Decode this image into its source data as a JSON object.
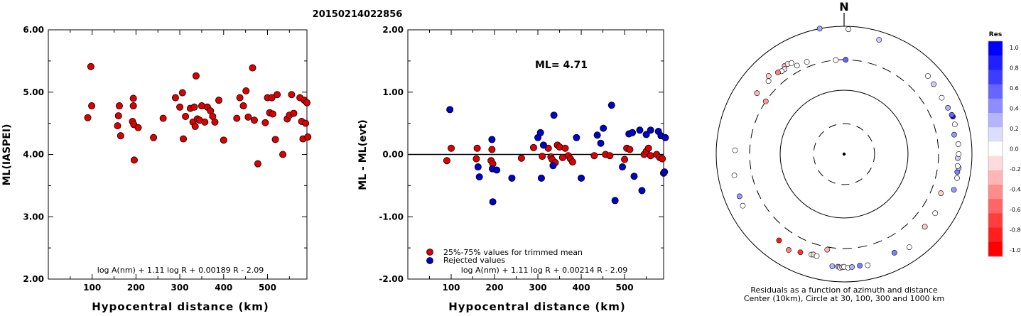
{
  "event_id": "20150214022856",
  "chart_data": [
    {
      "type": "scatter",
      "xlabel": "Hypocentral distance (km)",
      "ylabel": "ML(IASPEI)",
      "xlim": [
        0,
        590
      ],
      "ylim": [
        2.0,
        6.0
      ],
      "x_ticks": [
        "100",
        "200",
        "300",
        "400",
        "500"
      ],
      "y_ticks": [
        "2.00",
        "3.00",
        "4.00",
        "5.00",
        "6.00"
      ],
      "formula": "log A(nm) + 1.11 log R + 0.00189 R - 2.09",
      "point_color": "#dd0000",
      "points": [
        [
          90,
          4.59
        ],
        [
          97,
          5.41
        ],
        [
          99,
          4.78
        ],
        [
          158,
          4.46
        ],
        [
          160,
          4.62
        ],
        [
          162,
          4.78
        ],
        [
          165,
          4.3
        ],
        [
          192,
          4.53
        ],
        [
          194,
          4.78
        ],
        [
          194,
          4.9
        ],
        [
          195,
          4.48
        ],
        [
          196,
          3.91
        ],
        [
          205,
          4.43
        ],
        [
          240,
          4.27
        ],
        [
          262,
          4.58
        ],
        [
          290,
          4.91
        ],
        [
          300,
          4.76
        ],
        [
          306,
          4.99
        ],
        [
          308,
          4.25
        ],
        [
          313,
          4.61
        ],
        [
          324,
          4.74
        ],
        [
          330,
          4.52
        ],
        [
          333,
          4.76
        ],
        [
          335,
          4.45
        ],
        [
          337,
          5.26
        ],
        [
          340,
          4.57
        ],
        [
          345,
          4.55
        ],
        [
          350,
          4.78
        ],
        [
          357,
          4.52
        ],
        [
          363,
          4.76
        ],
        [
          370,
          4.7
        ],
        [
          375,
          4.61
        ],
        [
          380,
          4.52
        ],
        [
          389,
          4.87
        ],
        [
          400,
          4.23
        ],
        [
          430,
          4.58
        ],
        [
          437,
          4.91
        ],
        [
          445,
          4.78
        ],
        [
          451,
          5.02
        ],
        [
          456,
          4.6
        ],
        [
          466,
          5.39
        ],
        [
          470,
          4.55
        ],
        [
          478,
          3.85
        ],
        [
          495,
          4.51
        ],
        [
          500,
          4.91
        ],
        [
          505,
          4.67
        ],
        [
          510,
          4.91
        ],
        [
          512,
          4.65
        ],
        [
          518,
          4.24
        ],
        [
          522,
          4.96
        ],
        [
          535,
          4.0
        ],
        [
          545,
          4.57
        ],
        [
          550,
          4.63
        ],
        [
          555,
          4.96
        ],
        [
          560,
          4.66
        ],
        [
          574,
          4.91
        ],
        [
          578,
          4.53
        ],
        [
          581,
          4.25
        ],
        [
          584,
          4.87
        ],
        [
          587,
          4.5
        ],
        [
          590,
          4.83
        ],
        [
          592,
          4.28
        ]
      ]
    },
    {
      "type": "scatter",
      "xlabel": "Hypocentral distance (km)",
      "ylabel": "ML - ML(evt)",
      "xlim": [
        0,
        590
      ],
      "ylim": [
        -2.0,
        2.0
      ],
      "x_ticks": [
        "100",
        "200",
        "300",
        "400",
        "500"
      ],
      "y_ticks": [
        "-2.00",
        "-1.00",
        "0.00",
        "1.00",
        "2.00"
      ],
      "annotation": "ML= 4.71",
      "formula": "log A(nm) + 1.11 log R + 0.00214 R - 2.09",
      "legend": [
        "25%-75% values for trimmed mean",
        "Rejected values"
      ],
      "series": [
        {
          "name": "25%-75% values for trimmed mean",
          "color": "#dd0000",
          "points": [
            [
              90,
              -0.1
            ],
            [
              100,
              0.1
            ],
            [
              158,
              -0.07
            ],
            [
              160,
              0.1
            ],
            [
              192,
              -0.1
            ],
            [
              194,
              0.08
            ],
            [
              196,
              -0.15
            ],
            [
              262,
              -0.06
            ],
            [
              290,
              0.11
            ],
            [
              310,
              -0.03
            ],
            [
              324,
              0.1
            ],
            [
              330,
              -0.04
            ],
            [
              333,
              -0.08
            ],
            [
              340,
              -0.13
            ],
            [
              345,
              0.15
            ],
            [
              350,
              0.12
            ],
            [
              357,
              -0.05
            ],
            [
              363,
              0.1
            ],
            [
              370,
              -0.02
            ],
            [
              375,
              -0.07
            ],
            [
              380,
              -0.12
            ],
            [
              430,
              -0.02
            ],
            [
              456,
              0.0
            ],
            [
              466,
              -0.02
            ],
            [
              500,
              -0.08
            ],
            [
              505,
              0.1
            ],
            [
              512,
              0.08
            ],
            [
              545,
              0.0
            ],
            [
              550,
              0.05
            ],
            [
              555,
              0.1
            ],
            [
              560,
              -0.02
            ],
            [
              574,
              0.0
            ],
            [
              581,
              -0.05
            ],
            [
              587,
              -0.07
            ]
          ]
        },
        {
          "name": "Rejected values",
          "color": "#0000cc",
          "points": [
            [
              97,
              0.72
            ],
            [
              162,
              -0.2
            ],
            [
              165,
              -0.36
            ],
            [
              194,
              0.24
            ],
            [
              195,
              -0.23
            ],
            [
              196,
              -0.76
            ],
            [
              205,
              -0.25
            ],
            [
              240,
              -0.38
            ],
            [
              300,
              0.27
            ],
            [
              306,
              0.35
            ],
            [
              308,
              -0.38
            ],
            [
              313,
              0.15
            ],
            [
              335,
              -0.18
            ],
            [
              337,
              0.63
            ],
            [
              389,
              0.27
            ],
            [
              400,
              -0.38
            ],
            [
              437,
              0.31
            ],
            [
              445,
              0.18
            ],
            [
              451,
              0.42
            ],
            [
              470,
              0.79
            ],
            [
              478,
              -0.74
            ],
            [
              495,
              -0.2
            ],
            [
              510,
              0.33
            ],
            [
              518,
              0.35
            ],
            [
              522,
              -0.35
            ],
            [
              535,
              0.39
            ],
            [
              540,
              -0.58
            ],
            [
              550,
              0.32
            ],
            [
              560,
              0.39
            ],
            [
              578,
              0.37
            ],
            [
              584,
              0.3
            ],
            [
              590,
              -0.3
            ],
            [
              592,
              -0.28
            ],
            [
              594,
              0.27
            ]
          ]
        }
      ]
    },
    {
      "type": "scatter",
      "subtype": "polar",
      "north_label": "N",
      "caption": [
        "Residuals as a function of azimuth and distance",
        "Center (10km), Circle at 30, 100, 300 and 1000 km"
      ],
      "colorbar": {
        "title": "Res",
        "ticks": [
          "1.0",
          "0.8",
          "0.6",
          "0.4",
          "0.2",
          "0.0",
          "-0.2",
          "-0.4",
          "-0.6",
          "-0.8",
          "-1.0"
        ],
        "colors": [
          "#0000ff",
          "#1f1fff",
          "#3d3dff",
          "#6565ff",
          "#8d8dff",
          "#b5b5ff",
          "#dcdcff",
          "#ffffff",
          "#ffdcdc",
          "#ffb5b5",
          "#ff8d8d",
          "#ff6565",
          "#ff3d3d",
          "#ff1f1f",
          "#ff0000"
        ]
      },
      "stations": [
        {
          "az": -11,
          "dist": 1000,
          "res": 0.35
        },
        {
          "az": 2,
          "dist": 900,
          "res": 0.0
        },
        {
          "az": 17,
          "dist": 740,
          "res": 0.2
        },
        {
          "az": -5,
          "dist": 300,
          "res": 0.0
        },
        {
          "az": 1,
          "dist": 300,
          "res": 0.6
        },
        {
          "az": -34,
          "dist": 460,
          "res": -0.3
        },
        {
          "az": -32,
          "dist": 460,
          "res": -0.1
        },
        {
          "az": -30,
          "dist": 440,
          "res": 0.0
        },
        {
          "az": -35,
          "dist": 420,
          "res": 0.1
        },
        {
          "az": -37,
          "dist": 420,
          "res": 0.0
        },
        {
          "az": -39,
          "dist": 440,
          "res": -0.5
        },
        {
          "az": -28,
          "dist": 370,
          "res": 0.0
        },
        {
          "az": -22,
          "dist": 360,
          "res": 0.0
        },
        {
          "az": -44,
          "dist": 500,
          "res": -0.2
        },
        {
          "az": -46,
          "dist": 440,
          "res": 0.0
        },
        {
          "az": -55,
          "dist": 460,
          "res": -0.3
        },
        {
          "az": -56,
          "dist": 300,
          "res": -0.4
        },
        {
          "az": -88,
          "dist": 510,
          "res": 0.0
        },
        {
          "az": -101,
          "dist": 560,
          "res": 0.0
        },
        {
          "az": -112,
          "dist": 580,
          "res": 0.4
        },
        {
          "az": -117,
          "dist": 600,
          "res": 0.0
        },
        {
          "az": -143,
          "dist": 490,
          "res": -0.9
        },
        {
          "az": -150,
          "dist": 540,
          "res": -0.5
        },
        {
          "az": -156,
          "dist": 480,
          "res": -0.8
        },
        {
          "az": -162,
          "dist": 450,
          "res": 0.0
        },
        {
          "az": -163,
          "dist": 440,
          "res": -0.2
        },
        {
          "az": -165,
          "dist": 450,
          "res": 0.0
        },
        {
          "az": -174,
          "dist": 580,
          "res": 0.3
        },
        {
          "az": -177,
          "dist": 580,
          "res": 0.4
        },
        {
          "az": -178,
          "dist": 600,
          "res": 0.0
        },
        {
          "az": -179,
          "dist": 590,
          "res": -0.2
        },
        {
          "az": 180,
          "dist": 580,
          "res": 0.0
        },
        {
          "az": 178,
          "dist": 600,
          "res": 0.0
        },
        {
          "az": 176,
          "dist": 590,
          "res": 0.3
        },
        {
          "az": 172,
          "dist": 580,
          "res": 0.5
        },
        {
          "az": 168,
          "dist": 600,
          "res": 0.0
        },
        {
          "az": -170,
          "dist": 330,
          "res": -0.3
        },
        {
          "az": 153,
          "dist": 540,
          "res": 0.5
        },
        {
          "az": 145,
          "dist": 600,
          "res": 0.0
        },
        {
          "az": 132,
          "dist": 500,
          "res": -0.2
        },
        {
          "az": 123,
          "dist": 500,
          "res": 0.0
        },
        {
          "az": 112,
          "dist": 430,
          "res": -0.2
        },
        {
          "az": 108,
          "dist": 640,
          "res": 0.4
        },
        {
          "az": 102,
          "dist": 640,
          "res": 0.0
        },
        {
          "az": 99,
          "dist": 620,
          "res": 0.5
        },
        {
          "az": 97,
          "dist": 640,
          "res": 0.3
        },
        {
          "az": 96,
          "dist": 610,
          "res": 0.0
        },
        {
          "az": 92,
          "dist": 600,
          "res": 0.2
        },
        {
          "az": 90,
          "dist": 620,
          "res": 0.0
        },
        {
          "az": 85,
          "dist": 620,
          "res": 0.0
        },
        {
          "az": 80,
          "dist": 560,
          "res": 0.4
        },
        {
          "az": 75,
          "dist": 620,
          "res": 0.0
        },
        {
          "az": 71,
          "dist": 630,
          "res": 0.9
        },
        {
          "az": 70,
          "dist": 620,
          "res": 0.6
        },
        {
          "az": 66,
          "dist": 600,
          "res": 0.3
        },
        {
          "az": 60,
          "dist": 580,
          "res": 0.0
        },
        {
          "az": 52,
          "dist": 600,
          "res": 0.2
        },
        {
          "az": 47,
          "dist": 620,
          "res": 0.0
        }
      ]
    }
  ]
}
